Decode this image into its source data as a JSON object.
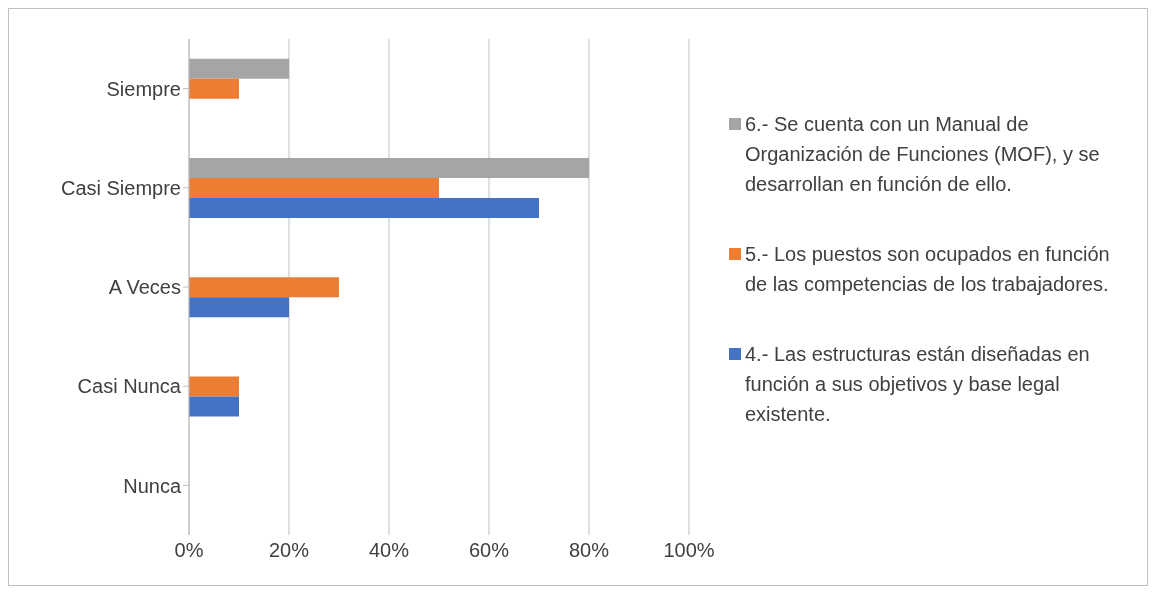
{
  "chart_data": {
    "type": "bar",
    "orientation": "horizontal",
    "categories": [
      "Siempre",
      "Casi Siempre",
      "A Veces",
      "Casi Nunca",
      "Nunca"
    ],
    "series": [
      {
        "name": "6.- Se cuenta con un Manual de Organización de Funciones (MOF), y se desarrollan en función de ello.",
        "color": "#a5a5a5",
        "values": [
          20,
          80,
          0,
          0,
          0
        ]
      },
      {
        "name": "5.- Los puestos son ocupados en función de las competencias de los trabajadores.",
        "color": "#ed7d31",
        "values": [
          10,
          50,
          30,
          10,
          0
        ]
      },
      {
        "name": "4.- Las estructuras están diseñadas en función a sus objetivos y base legal existente.",
        "color": "#4472c4",
        "values": [
          0,
          70,
          20,
          10,
          0
        ]
      }
    ],
    "xlim": [
      0,
      100
    ],
    "xticks": [
      {
        "value": 0,
        "label": "0%"
      },
      {
        "value": 20,
        "label": "20%"
      },
      {
        "value": 40,
        "label": "40%"
      },
      {
        "value": 60,
        "label": "60%"
      },
      {
        "value": 80,
        "label": "80%"
      },
      {
        "value": 100,
        "label": "100%"
      }
    ],
    "grid": "x",
    "legend": "right"
  }
}
